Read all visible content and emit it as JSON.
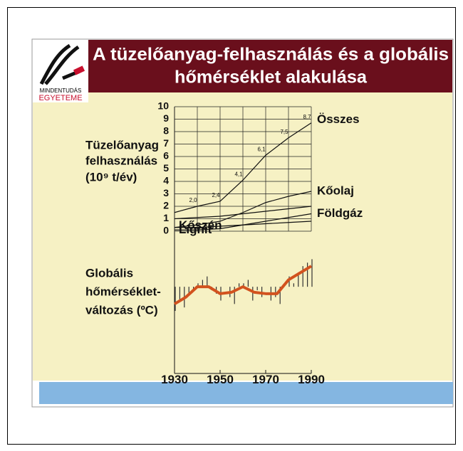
{
  "logo": {
    "line1": "MINDENTUDÁS",
    "line2": "EGYETEME"
  },
  "chart_data": {
    "type": "line",
    "title": [
      "A tüzelőanyag-felhasználás és a globális",
      "hőmérséklet alakulása"
    ],
    "ylabel": [
      "Tüzelőanyag",
      "felhasználás",
      "(10⁹ t/év)"
    ],
    "y2label": [
      "Globális",
      "hőmérséklet-",
      "változás (ºC)"
    ],
    "x": [
      1930,
      1940,
      1950,
      1960,
      1970,
      1980,
      1990
    ],
    "xlim": [
      1930,
      1990
    ],
    "xticks": [
      1930,
      1950,
      1970,
      1990
    ],
    "xgrid": [
      1930,
      1940,
      1950,
      1960,
      1970,
      1980,
      1990
    ],
    "ylim": [
      0,
      10
    ],
    "yticks": [
      0,
      1,
      2,
      3,
      4,
      5,
      6,
      7,
      8,
      9,
      10
    ],
    "y2lim": [
      -1,
      0.6
    ],
    "grid": true,
    "series": [
      {
        "name": "Összes",
        "color": "#111111",
        "values": [
          1.5,
          2.0,
          2.4,
          4.1,
          6.1,
          7.5,
          8.7
        ],
        "value_labels": [
          null,
          "2,0",
          "2,4",
          "4,1",
          "6,1",
          "7,5",
          "8,7"
        ]
      },
      {
        "name": "Kőolaj",
        "color": "#111111",
        "values": [
          0.3,
          0.5,
          0.8,
          1.5,
          2.3,
          2.8,
          3.2
        ]
      },
      {
        "name": "Kőszén",
        "color": "#111111",
        "values": [
          1.0,
          1.1,
          1.2,
          1.4,
          1.6,
          1.8,
          2.0
        ]
      },
      {
        "name": "Földgáz",
        "color": "#111111",
        "values": [
          0.1,
          0.1,
          0.2,
          0.5,
          0.8,
          1.1,
          1.4
        ]
      },
      {
        "name": "Lignit",
        "color": "#111111",
        "values": [
          0.3,
          0.3,
          0.4,
          0.5,
          0.6,
          0.7,
          0.8
        ]
      }
    ],
    "temperature": {
      "color": "#d2521e",
      "x": [
        1930,
        1935,
        1940,
        1945,
        1950,
        1955,
        1960,
        1965,
        1970,
        1975,
        1980,
        1985,
        1990
      ],
      "values": [
        -0.25,
        -0.15,
        0.0,
        0.0,
        -0.1,
        -0.08,
        0.0,
        -0.08,
        -0.1,
        -0.1,
        0.1,
        0.2,
        0.3
      ],
      "annual_color": "#333333",
      "annual_x": [
        1930,
        1932,
        1934,
        1936,
        1938,
        1940,
        1942,
        1944,
        1946,
        1948,
        1950,
        1952,
        1954,
        1956,
        1958,
        1960,
        1962,
        1964,
        1966,
        1968,
        1970,
        1972,
        1974,
        1976,
        1978,
        1980,
        1982,
        1984,
        1986,
        1988,
        1990
      ],
      "annual_values": [
        -0.35,
        -0.2,
        -0.3,
        -0.1,
        -0.05,
        0.05,
        0.1,
        0.15,
        -0.05,
        -0.1,
        -0.2,
        0.0,
        -0.15,
        -0.25,
        0.05,
        0.05,
        0.1,
        -0.2,
        -0.05,
        -0.15,
        0.0,
        -0.2,
        -0.15,
        -0.25,
        0.0,
        0.15,
        0.05,
        0.2,
        0.3,
        0.35,
        0.4
      ]
    }
  }
}
